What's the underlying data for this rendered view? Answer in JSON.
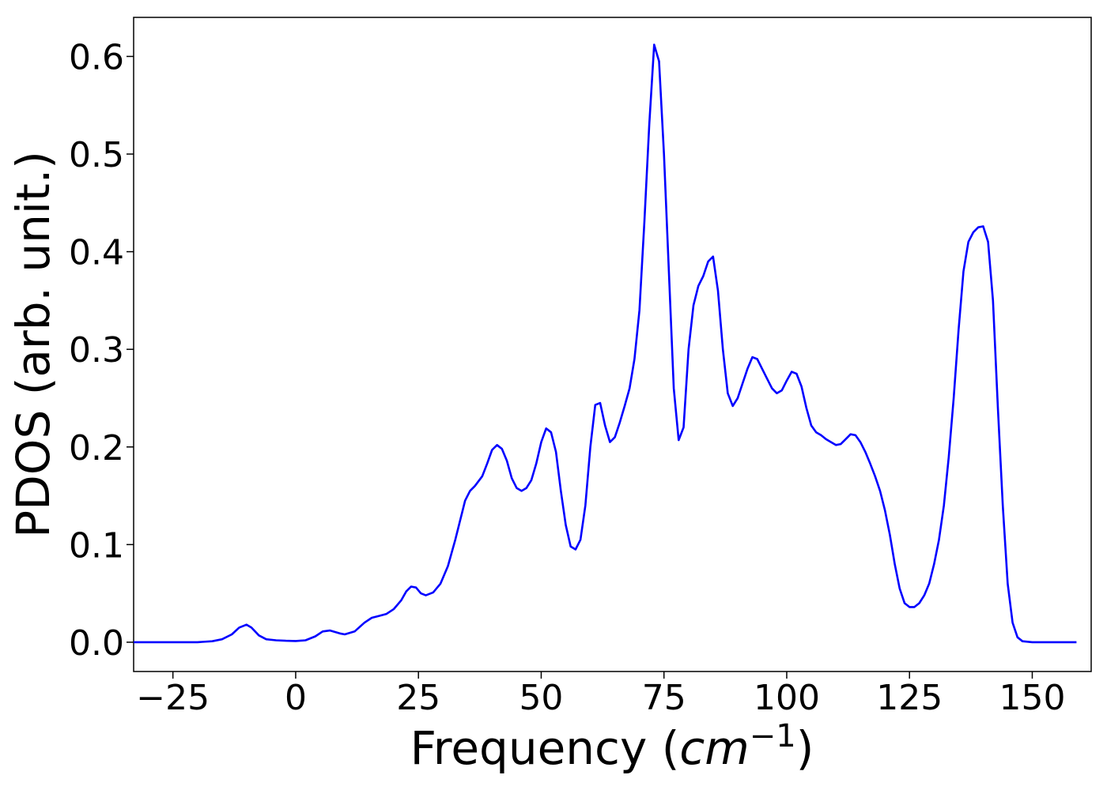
{
  "chart_data": {
    "type": "line",
    "title": "",
    "xlabel": "Frequency",
    "xlabel_unit_open": "(",
    "xlabel_unit": "cm",
    "xlabel_unit_exp": "−1",
    "xlabel_unit_close": ")",
    "ylabel": "PDOS (arb. unit.)",
    "xlim": [
      -33,
      162
    ],
    "ylim": [
      -0.03,
      0.64
    ],
    "xticks": [
      -25,
      0,
      25,
      50,
      75,
      100,
      125,
      150
    ],
    "xtick_labels": [
      "−25",
      "0",
      "25",
      "50",
      "75",
      "100",
      "125",
      "150"
    ],
    "yticks": [
      0.0,
      0.1,
      0.2,
      0.3,
      0.4,
      0.5,
      0.6
    ],
    "ytick_labels": [
      "0.0",
      "0.1",
      "0.2",
      "0.3",
      "0.4",
      "0.5",
      "0.6"
    ],
    "grid": false,
    "legend": "none",
    "series": [
      {
        "color": "#0000ff",
        "x": [
          -33,
          -20,
          -17,
          -15,
          -13,
          -11.5,
          -10,
          -9,
          -7.5,
          -6,
          -4,
          -2,
          0,
          2,
          4,
          5.5,
          7,
          9,
          10,
          12,
          14,
          15.5,
          17,
          18.5,
          20,
          21.5,
          22.5,
          23.5,
          24.5,
          25.5,
          26.5,
          28,
          29.5,
          31,
          32.5,
          33.5,
          34.5,
          35.5,
          36.5,
          38,
          39,
          40,
          41,
          42,
          43,
          44,
          45,
          46,
          47,
          48,
          49,
          50,
          51,
          52,
          53,
          54,
          55,
          56,
          57,
          58,
          59,
          60,
          61,
          62,
          63,
          64,
          65,
          66,
          67,
          68,
          69,
          70,
          71,
          72,
          73,
          74,
          75,
          76,
          77,
          78,
          79,
          80,
          81,
          82,
          83,
          84,
          85,
          86,
          87,
          88,
          89,
          90,
          91,
          92,
          93,
          94,
          95,
          96,
          97,
          98,
          99,
          100,
          101,
          102,
          103,
          104,
          105,
          106,
          107,
          108,
          109,
          110,
          111,
          112,
          113,
          114,
          115,
          116,
          117,
          118,
          119,
          120,
          121,
          122,
          123,
          124,
          125,
          126,
          127,
          128,
          129,
          130,
          131,
          132,
          133,
          134,
          135,
          136,
          137,
          138,
          139,
          140,
          141,
          142,
          143,
          144,
          145,
          146,
          147,
          148,
          150,
          159
        ],
        "y": [
          0.0,
          0.0,
          0.001,
          0.003,
          0.008,
          0.015,
          0.018,
          0.015,
          0.007,
          0.003,
          0.002,
          0.0015,
          0.0012,
          0.002,
          0.006,
          0.011,
          0.012,
          0.009,
          0.008,
          0.011,
          0.02,
          0.025,
          0.027,
          0.029,
          0.034,
          0.043,
          0.052,
          0.057,
          0.056,
          0.05,
          0.048,
          0.051,
          0.06,
          0.078,
          0.105,
          0.125,
          0.145,
          0.155,
          0.16,
          0.17,
          0.183,
          0.197,
          0.202,
          0.198,
          0.186,
          0.168,
          0.158,
          0.155,
          0.158,
          0.166,
          0.183,
          0.205,
          0.219,
          0.215,
          0.195,
          0.155,
          0.12,
          0.098,
          0.095,
          0.105,
          0.14,
          0.2,
          0.243,
          0.245,
          0.222,
          0.205,
          0.21,
          0.225,
          0.242,
          0.26,
          0.29,
          0.34,
          0.43,
          0.53,
          0.612,
          0.595,
          0.5,
          0.38,
          0.26,
          0.207,
          0.22,
          0.3,
          0.345,
          0.365,
          0.375,
          0.39,
          0.395,
          0.36,
          0.3,
          0.255,
          0.242,
          0.25,
          0.265,
          0.28,
          0.292,
          0.29,
          0.28,
          0.27,
          0.26,
          0.255,
          0.258,
          0.268,
          0.277,
          0.275,
          0.262,
          0.24,
          0.222,
          0.215,
          0.212,
          0.208,
          0.205,
          0.202,
          0.203,
          0.208,
          0.213,
          0.212,
          0.205,
          0.195,
          0.183,
          0.17,
          0.155,
          0.135,
          0.11,
          0.08,
          0.055,
          0.04,
          0.036,
          0.036,
          0.04,
          0.048,
          0.06,
          0.08,
          0.105,
          0.14,
          0.19,
          0.25,
          0.32,
          0.38,
          0.41,
          0.42,
          0.425,
          0.426,
          0.41,
          0.35,
          0.24,
          0.14,
          0.06,
          0.02,
          0.005,
          0.001,
          0.0,
          0.0
        ]
      }
    ]
  }
}
